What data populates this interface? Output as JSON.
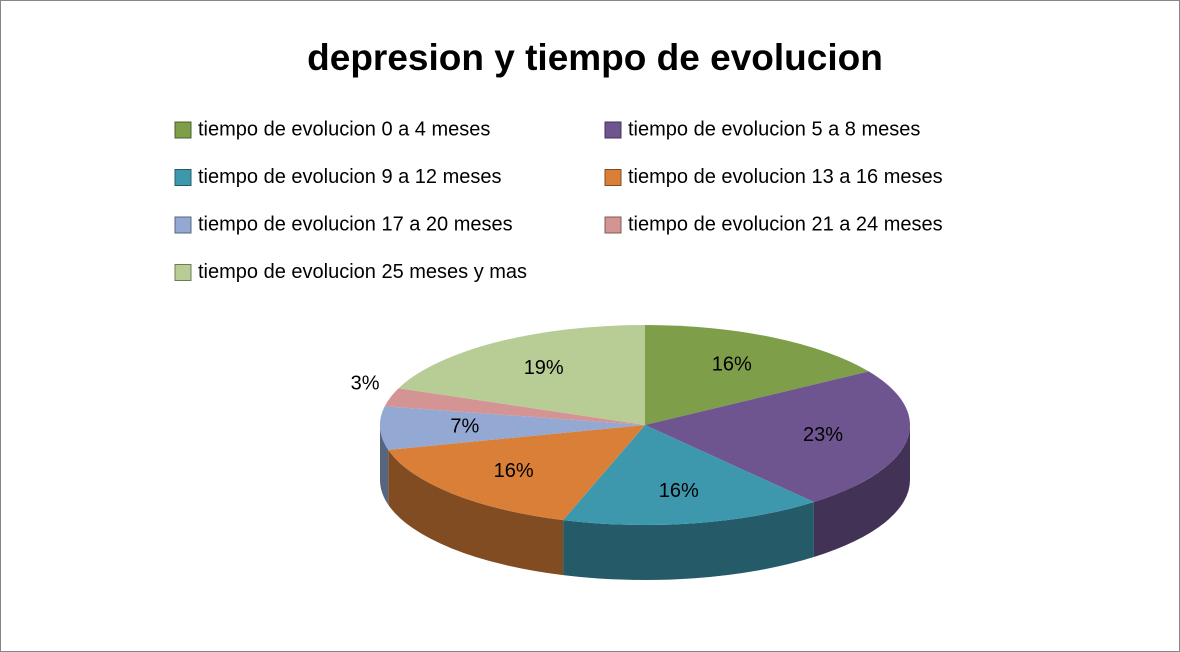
{
  "chart_data": {
    "type": "pie",
    "title": "depresion y tiempo de evolucion",
    "categories": [
      "tiempo de evolucion 0 a 4 meses",
      "tiempo de evolucion 5 a 8 meses",
      "tiempo de evolucion 9 a 12 meses",
      "tiempo de evolucion 13 a 16 meses",
      "tiempo de evolucion 17 a 20 meses",
      "tiempo de evolucion 21 a 24 meses",
      "tiempo de evolucion 25 meses y mas"
    ],
    "values": [
      16,
      23,
      16,
      16,
      7,
      3,
      19
    ],
    "value_labels": [
      "16%",
      "23%",
      "16%",
      "16%",
      "7%",
      "3%",
      "19%"
    ],
    "colors": [
      "#7f9e4a",
      "#6e5590",
      "#3d98ae",
      "#d97f38",
      "#93a8d2",
      "#d49494",
      "#b8cd95"
    ],
    "legend": "top"
  }
}
